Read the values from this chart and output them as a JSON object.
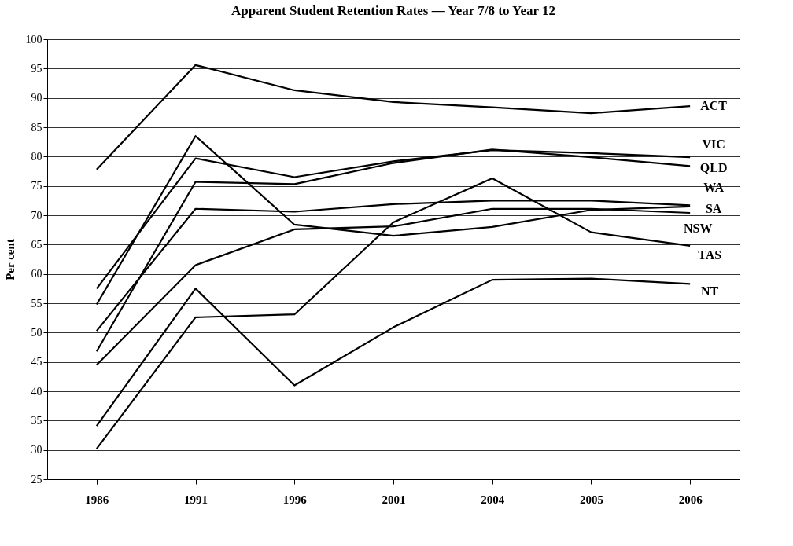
{
  "chart_data": {
    "type": "line",
    "title": "Apparent Student Retention Rates — Year 7/8 to Year 12",
    "ylabel": "Per cent",
    "categories": [
      "1986",
      "1991",
      "1996",
      "2001",
      "2004",
      "2005",
      "2006"
    ],
    "series": [
      {
        "name": "ACT",
        "color": "#000000",
        "values": [
          77.8,
          95.6,
          91.3,
          89.3,
          88.4,
          87.4,
          88.6
        ]
      },
      {
        "name": "VIC",
        "color": "#000000",
        "values": [
          57.5,
          79.7,
          76.5,
          79.2,
          81.1,
          80.6,
          79.9
        ]
      },
      {
        "name": "QLD",
        "color": "#000000",
        "values": [
          46.8,
          75.7,
          75.3,
          78.9,
          81.2,
          79.9,
          78.4
        ]
      },
      {
        "name": "WA",
        "color": "#000000",
        "values": [
          50.3,
          71.1,
          70.6,
          71.9,
          72.5,
          72.5,
          71.7
        ]
      },
      {
        "name": "SA",
        "color": "#000000",
        "values": [
          54.8,
          83.5,
          68.4,
          66.5,
          68.0,
          70.9,
          71.5
        ]
      },
      {
        "name": "NSW",
        "color": "#000000",
        "values": [
          44.5,
          61.5,
          67.6,
          68.1,
          71.1,
          71.1,
          70.4
        ]
      },
      {
        "name": "TAS",
        "color": "#000000",
        "values": [
          30.2,
          52.6,
          53.1,
          68.8,
          76.3,
          67.1,
          64.8
        ]
      },
      {
        "name": "NT",
        "color": "#000000",
        "values": [
          34.1,
          57.5,
          41.0,
          50.9,
          59.0,
          59.2,
          58.3
        ]
      }
    ],
    "ylim": [
      25,
      100
    ],
    "yticks": [
      25,
      30,
      35,
      40,
      45,
      50,
      55,
      60,
      65,
      70,
      75,
      80,
      85,
      90,
      95,
      100
    ],
    "grid": "y",
    "legend": false,
    "marker": "none",
    "line_style": "solid"
  }
}
